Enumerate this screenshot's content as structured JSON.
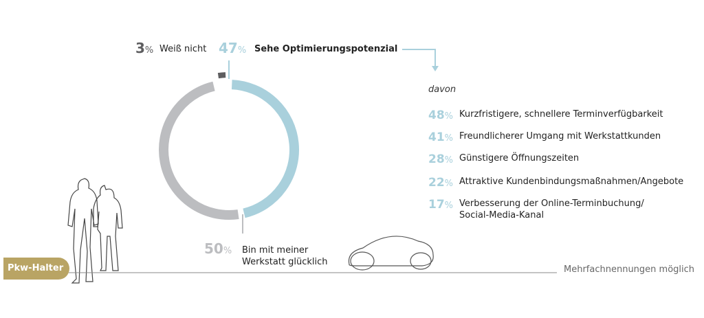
{
  "chart_data": [
    {
      "type": "donut",
      "categories": [
        "Sehe Optimierungspotenzial",
        "Bin mit meiner\nWerkstatt glücklich",
        "Weiß nicht"
      ],
      "values": [
        47,
        50,
        3
      ],
      "value_labels": [
        "47%",
        "50%",
        "3%"
      ],
      "colors": [
        "#a9d0dc",
        "#bcbdc0",
        "#5e5e60"
      ]
    },
    {
      "type": "list",
      "title": "davon",
      "categories": [
        "Kurzfristigere, schnellere Terminverfügbarkeit",
        "Freundlicherer Umgang mit Werkstattkunden",
        "Günstigere Öffnungszeiten",
        "Attraktive Kundenbindungsmaßnahmen/Angebote",
        "Verbesserung der Online-Terminbuchung/\nSocial-Media-Kanal"
      ],
      "values": [
        48,
        41,
        28,
        22,
        17
      ],
      "value_labels": [
        "48%",
        "41%",
        "28%",
        "22%",
        "17%"
      ],
      "color": "#a9d0dc"
    }
  ],
  "badge": "Pkw-Halter",
  "footnote": "Mehrfachnennungen möglich"
}
